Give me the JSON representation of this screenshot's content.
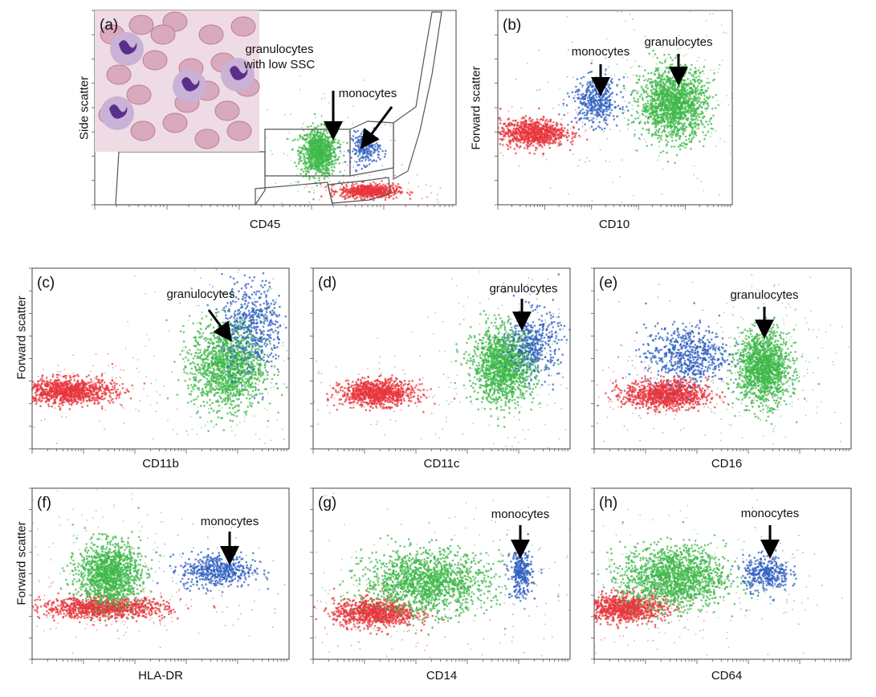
{
  "figure": {
    "y_label_side_scatter": "Side scatter",
    "y_label_forward_scatter": "Forward scatter"
  },
  "colors": {
    "granulocytes": "#3fb84a",
    "monocytes": "#2f5fc0",
    "lymphocytes": "#e8363c",
    "debris": "#d9c94a",
    "axis": "#444444",
    "gate": "#555555"
  },
  "panels": [
    {
      "id": "a",
      "label": "(a)",
      "xlabel": "CD45",
      "ylabel": "Side scatter",
      "annotations": [
        "granulocytes\nwith low SSC",
        "monocytes"
      ],
      "inset": "blood-smear-micrograph"
    },
    {
      "id": "b",
      "label": "(b)",
      "xlabel": "CD10",
      "ylabel": "",
      "annotations": [
        "monocytes",
        "granulocytes"
      ]
    },
    {
      "id": "c",
      "label": "(c)",
      "xlabel": "CD11b",
      "ylabel": "Forward scatter",
      "annotations": [
        "granulocytes"
      ]
    },
    {
      "id": "d",
      "label": "(d)",
      "xlabel": "CD11c",
      "ylabel": "",
      "annotations": [
        "granulocytes"
      ]
    },
    {
      "id": "e",
      "label": "(e)",
      "xlabel": "CD16",
      "ylabel": "",
      "annotations": [
        "granulocytes"
      ]
    },
    {
      "id": "f",
      "label": "(f)",
      "xlabel": "HLA-DR",
      "ylabel": "Forward scatter",
      "annotations": [
        "monocytes"
      ]
    },
    {
      "id": "g",
      "label": "(g)",
      "xlabel": "CD14",
      "ylabel": "",
      "annotations": [
        "monocytes"
      ]
    },
    {
      "id": "h",
      "label": "(h)",
      "xlabel": "CD64",
      "ylabel": "",
      "annotations": [
        "monocytes"
      ]
    }
  ],
  "chart_data": [
    {
      "type": "scatter",
      "panel": "a",
      "xlabel": "CD45",
      "ylabel": "Side scatter",
      "x_scale": "log",
      "ylim": [
        0,
        1
      ],
      "xlim": [
        0,
        1
      ],
      "series": [
        {
          "name": "granulocytes",
          "cx": 0.62,
          "cy": 0.27,
          "sx": 0.025,
          "sy": 0.06,
          "n": 900
        },
        {
          "name": "monocytes",
          "cx": 0.75,
          "cy": 0.29,
          "sx": 0.02,
          "sy": 0.04,
          "n": 220
        },
        {
          "name": "lymphocytes",
          "cx": 0.76,
          "cy": 0.07,
          "sx": 0.04,
          "sy": 0.018,
          "n": 600
        }
      ]
    },
    {
      "type": "scatter",
      "panel": "b",
      "xlabel": "CD10",
      "ylabel": "Forward scatter",
      "x_scale": "log",
      "xlim": [
        0,
        1
      ],
      "ylim": [
        0,
        1
      ],
      "series": [
        {
          "name": "lymphocytes",
          "cx": 0.15,
          "cy": 0.37,
          "sx": 0.07,
          "sy": 0.035,
          "n": 800
        },
        {
          "name": "monocytes",
          "cx": 0.42,
          "cy": 0.53,
          "sx": 0.05,
          "sy": 0.06,
          "n": 400
        },
        {
          "name": "granulocytes",
          "cx": 0.75,
          "cy": 0.52,
          "sx": 0.07,
          "sy": 0.09,
          "n": 1500
        }
      ]
    },
    {
      "type": "scatter",
      "panel": "c",
      "xlabel": "CD11b",
      "ylabel": "Forward scatter",
      "x_scale": "log",
      "xlim": [
        0,
        1
      ],
      "ylim": [
        0,
        1
      ],
      "series": [
        {
          "name": "lymphocytes",
          "cx": 0.14,
          "cy": 0.32,
          "sx": 0.09,
          "sy": 0.035,
          "n": 1000
        },
        {
          "name": "granulocytes",
          "cx": 0.76,
          "cy": 0.46,
          "sx": 0.07,
          "sy": 0.12,
          "n": 1400
        },
        {
          "name": "monocytes",
          "cx": 0.86,
          "cy": 0.68,
          "sx": 0.06,
          "sy": 0.13,
          "n": 500
        }
      ]
    },
    {
      "type": "scatter",
      "panel": "d",
      "xlabel": "CD11c",
      "ylabel": "Forward scatter",
      "x_scale": "log",
      "xlim": [
        0,
        1
      ],
      "ylim": [
        0,
        1
      ],
      "series": [
        {
          "name": "lymphocytes",
          "cx": 0.25,
          "cy": 0.31,
          "sx": 0.07,
          "sy": 0.035,
          "n": 900
        },
        {
          "name": "granulocytes",
          "cx": 0.74,
          "cy": 0.46,
          "sx": 0.06,
          "sy": 0.1,
          "n": 1400
        },
        {
          "name": "monocytes",
          "cx": 0.86,
          "cy": 0.58,
          "sx": 0.05,
          "sy": 0.09,
          "n": 400
        }
      ]
    },
    {
      "type": "scatter",
      "panel": "e",
      "xlabel": "CD16",
      "ylabel": "Forward scatter",
      "x_scale": "log",
      "xlim": [
        0,
        1
      ],
      "ylim": [
        0,
        1
      ],
      "series": [
        {
          "name": "lymphocytes",
          "cx": 0.28,
          "cy": 0.3,
          "sx": 0.08,
          "sy": 0.04,
          "n": 1000
        },
        {
          "name": "monocytes",
          "cx": 0.36,
          "cy": 0.52,
          "sx": 0.08,
          "sy": 0.08,
          "n": 600
        },
        {
          "name": "granulocytes",
          "cx": 0.66,
          "cy": 0.45,
          "sx": 0.05,
          "sy": 0.1,
          "n": 1400
        }
      ]
    },
    {
      "type": "scatter",
      "panel": "f",
      "xlabel": "HLA-DR",
      "ylabel": "Forward scatter",
      "x_scale": "log",
      "xlim": [
        0,
        1
      ],
      "ylim": [
        0,
        1
      ],
      "series": [
        {
          "name": "lymphocytes",
          "cx": 0.28,
          "cy": 0.3,
          "sx": 0.12,
          "sy": 0.03,
          "n": 1000
        },
        {
          "name": "granulocytes",
          "cx": 0.3,
          "cy": 0.5,
          "sx": 0.06,
          "sy": 0.09,
          "n": 1300
        },
        {
          "name": "monocytes",
          "cx": 0.72,
          "cy": 0.52,
          "sx": 0.07,
          "sy": 0.05,
          "n": 500
        }
      ]
    },
    {
      "type": "scatter",
      "panel": "g",
      "xlabel": "CD14",
      "ylabel": "Forward scatter",
      "x_scale": "log",
      "xlim": [
        0,
        1
      ],
      "ylim": [
        0,
        1
      ],
      "series": [
        {
          "name": "lymphocytes",
          "cx": 0.24,
          "cy": 0.27,
          "sx": 0.08,
          "sy": 0.04,
          "n": 900
        },
        {
          "name": "granulocytes",
          "cx": 0.44,
          "cy": 0.45,
          "sx": 0.12,
          "sy": 0.09,
          "n": 1500
        },
        {
          "name": "monocytes",
          "cx": 0.81,
          "cy": 0.5,
          "sx": 0.022,
          "sy": 0.07,
          "n": 300
        }
      ]
    },
    {
      "type": "scatter",
      "panel": "h",
      "xlabel": "CD64",
      "ylabel": "Forward scatter",
      "x_scale": "log",
      "xlim": [
        0,
        1
      ],
      "ylim": [
        0,
        1
      ],
      "series": [
        {
          "name": "lymphocytes",
          "cx": 0.12,
          "cy": 0.3,
          "sx": 0.08,
          "sy": 0.04,
          "n": 900
        },
        {
          "name": "granulocytes",
          "cx": 0.31,
          "cy": 0.48,
          "sx": 0.1,
          "sy": 0.09,
          "n": 1500
        },
        {
          "name": "monocytes",
          "cx": 0.67,
          "cy": 0.5,
          "sx": 0.045,
          "sy": 0.05,
          "n": 350
        }
      ]
    }
  ]
}
